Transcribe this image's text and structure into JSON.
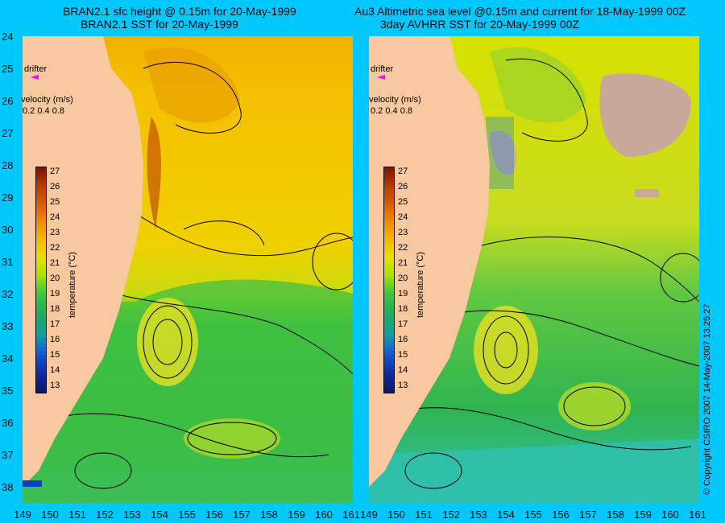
{
  "titles": {
    "left_line1": "BRAN2.1 sfc height @ 0.15m for 20-May-1999",
    "left_line2": "BRAN2.1 SST for 20-May-1999",
    "right_line1": "Au3 Altimetric sea level  @0.15m and current for 18-May-1999 00Z",
    "right_line2": "3day AVHRR SST for 20-May-1999 00Z"
  },
  "legend": {
    "drifter_label": "drifter",
    "velocity_label": "velocity (m/s)",
    "velocity_ticks": "0.2 0.4 0.8",
    "colorbar_title": "temperature (°C)",
    "colorbar_ticks": [
      "27",
      "26",
      "25",
      "24",
      "23",
      "22",
      "21",
      "20",
      "19",
      "18",
      "17",
      "16",
      "15",
      "14",
      "13"
    ]
  },
  "axes": {
    "y_ticks": [
      "24",
      "25",
      "26",
      "27",
      "28",
      "29",
      "30",
      "31",
      "32",
      "33",
      "34",
      "35",
      "36",
      "37",
      "38"
    ],
    "x_ticks_left": [
      "149",
      "150",
      "151",
      "152",
      "153",
      "154",
      "155",
      "156",
      "157",
      "158",
      "159",
      "160",
      "161"
    ],
    "x_ticks_right": [
      "149",
      "150",
      "151",
      "152",
      "153",
      "154",
      "155",
      "156",
      "157",
      "158",
      "159",
      "160",
      "161"
    ]
  },
  "copyright": "© Copyright CSIRO 2007   14-May-2007 13:25:27",
  "colors": {
    "background": "#00c8ff",
    "land": "#f8c8a0",
    "drifter": "#ff00ff",
    "cloud": "#c8a898"
  }
}
